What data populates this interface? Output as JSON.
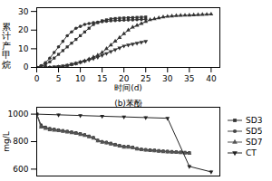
{
  "chart_data": [
    {
      "type": "line",
      "xlabel": "时间(d)",
      "ylabel": "累\n计\n产\n甲\n烷",
      "xlim": [
        0,
        42
      ],
      "xticks": [
        0,
        5,
        10,
        15,
        20,
        25,
        30,
        35,
        40
      ],
      "ylim": [
        0,
        32
      ],
      "yticks": [
        0,
        10,
        20,
        30
      ],
      "series": [
        {
          "name": "SD3",
          "color": "#333333",
          "marker": "square",
          "line_style": "solid",
          "x": [
            0,
            1,
            2,
            3,
            4,
            5,
            6,
            7,
            8,
            9,
            10,
            11,
            12,
            13,
            14,
            15,
            16,
            17,
            18,
            19,
            20,
            21,
            22,
            23,
            24,
            25
          ],
          "values": [
            0,
            0.5,
            1.5,
            3,
            5,
            7,
            9,
            11,
            13,
            15,
            17,
            19,
            21,
            23,
            24,
            25,
            25.5,
            26,
            26.2,
            26.4,
            26.5,
            26.6,
            26.7,
            26.8,
            26.9,
            27
          ]
        },
        {
          "name": "SD5",
          "color": "#333333",
          "marker": "circle",
          "line_style": "solid",
          "x": [
            0,
            1,
            2,
            3,
            4,
            5,
            6,
            7,
            8,
            9,
            10,
            11,
            12,
            13,
            14,
            15,
            16,
            17,
            18,
            19,
            20,
            21,
            22,
            23,
            24,
            25
          ],
          "values": [
            0,
            1,
            2.5,
            5,
            8,
            11,
            14,
            17,
            19,
            21,
            22,
            23,
            23.5,
            24,
            24.2,
            24.5,
            24.7,
            25,
            25.1,
            25.2,
            25.3,
            25.4,
            25.5,
            25.6,
            25.7,
            25.8
          ]
        },
        {
          "name": "SD7",
          "color": "#333333",
          "marker": "triangle-up",
          "line_style": "solid",
          "x": [
            0,
            1,
            2,
            3,
            4,
            5,
            6,
            7,
            8,
            9,
            10,
            11,
            12,
            13,
            14,
            15,
            16,
            17,
            18,
            19,
            20,
            21,
            22,
            23,
            24,
            25,
            26,
            27,
            28,
            29,
            30,
            31,
            32,
            33,
            34,
            35,
            36,
            37,
            38,
            39,
            40
          ],
          "values": [
            0,
            0,
            0,
            0,
            0,
            0.2,
            0.5,
            1,
            1.5,
            2,
            2.8,
            3.5,
            4.5,
            5.5,
            6.5,
            8,
            10,
            12,
            14,
            16,
            18,
            20,
            21.5,
            22.5,
            23.5,
            24.5,
            25.5,
            26,
            26.5,
            27,
            27.3,
            27.5,
            27.7,
            27.8,
            27.9,
            28,
            28.1,
            28.2,
            28.3,
            28.4,
            28.5
          ]
        },
        {
          "name": "CT",
          "color": "#333333",
          "marker": "triangle-down",
          "line_style": "solid",
          "x": [
            0,
            1,
            2,
            3,
            4,
            5,
            6,
            7,
            8,
            9,
            10,
            11,
            12,
            13,
            14,
            15,
            16,
            17,
            18,
            19,
            20,
            21,
            22,
            23,
            24,
            25
          ],
          "values": [
            0,
            0,
            0,
            0.1,
            0.3,
            0.5,
            0.8,
            1.2,
            1.7,
            2.2,
            2.8,
            3.4,
            4,
            4.7,
            5.5,
            6.5,
            7.5,
            8.5,
            9.5,
            10.5,
            11.5,
            12,
            12.5,
            13,
            13.5,
            14
          ]
        }
      ]
    },
    {
      "type": "line",
      "title": "(b)苯酚",
      "ylabel": "mg/L",
      "xlim": [
        0,
        42
      ],
      "xticks": [],
      "ylim": [
        550,
        1050
      ],
      "yticks": [
        600,
        800,
        1000
      ],
      "tick_labels": "y",
      "legend": "right",
      "series": [
        {
          "name": "SD3",
          "color": "#333333",
          "marker": "square",
          "line_style": "solid",
          "x": [
            0,
            1,
            2,
            3,
            4,
            5,
            6,
            7,
            8,
            9,
            10,
            11,
            12,
            13,
            14,
            15,
            16,
            17,
            18,
            19,
            20,
            21,
            22,
            23,
            24,
            25,
            26,
            27,
            28,
            29,
            30,
            31,
            32,
            33,
            34,
            35
          ],
          "values": [
            1000,
            920,
            905,
            895,
            890,
            885,
            880,
            875,
            870,
            865,
            858,
            850,
            840,
            830,
            810,
            800,
            795,
            788,
            780,
            772,
            765,
            765,
            760,
            750,
            745,
            742,
            740,
            738,
            735,
            732,
            730,
            728,
            726,
            724,
            722,
            720
          ],
          "yerr": [
            0,
            10,
            8,
            8,
            8,
            8,
            7,
            7,
            7,
            7,
            7,
            7,
            6,
            6,
            10,
            8,
            7,
            7,
            7,
            7,
            7,
            0,
            6,
            6,
            6,
            5,
            5,
            5,
            5,
            5,
            5,
            5,
            5,
            5,
            5,
            5
          ]
        },
        {
          "name": "SD5",
          "color": "#444444",
          "marker": "circle",
          "line_style": "solid",
          "x": [
            0,
            1,
            2,
            3,
            4,
            5,
            6,
            7,
            8,
            9,
            10,
            11,
            12,
            13,
            14,
            15,
            16,
            17,
            18,
            19,
            20,
            21,
            22,
            23,
            24,
            25,
            26,
            27,
            28,
            29,
            30,
            31,
            32,
            33,
            34,
            35
          ],
          "values": [
            1000,
            910,
            900,
            892,
            887,
            882,
            877,
            872,
            867,
            862,
            855,
            848,
            838,
            828,
            807,
            798,
            792,
            785,
            777,
            770,
            762,
            762,
            758,
            748,
            743,
            740,
            737,
            735,
            732,
            729,
            727,
            725,
            723,
            721,
            719,
            717
          ],
          "yerr": [
            0,
            10,
            8,
            8,
            8,
            8,
            7,
            7,
            7,
            7,
            7,
            7,
            6,
            6,
            10,
            8,
            7,
            7,
            7,
            7,
            7,
            0,
            6,
            6,
            6,
            5,
            5,
            5,
            5,
            5,
            5,
            5,
            5,
            5,
            5,
            5
          ]
        },
        {
          "name": "SD7",
          "color": "#555555",
          "marker": "triangle-up",
          "line_style": "solid",
          "x": [
            0,
            1,
            2,
            3,
            4,
            5,
            6,
            7,
            8,
            9,
            10,
            11,
            12,
            13,
            14,
            15,
            16,
            17,
            18,
            19,
            20,
            21,
            22,
            23,
            24,
            25,
            26,
            27,
            28,
            29,
            30,
            31,
            32,
            33,
            34,
            35
          ],
          "values": [
            1000,
            905,
            895,
            885,
            882,
            878,
            873,
            868,
            863,
            858,
            851,
            844,
            834,
            824,
            804,
            795,
            789,
            782,
            774,
            767,
            759,
            759,
            755,
            745,
            740,
            737,
            734,
            732,
            729,
            726,
            724,
            722,
            720,
            718,
            716,
            714
          ],
          "yerr": [
            0,
            10,
            8,
            8,
            8,
            8,
            7,
            7,
            7,
            7,
            7,
            7,
            6,
            6,
            10,
            8,
            7,
            7,
            7,
            7,
            7,
            0,
            6,
            6,
            6,
            5,
            5,
            5,
            5,
            5,
            5,
            5,
            5,
            5,
            5,
            5
          ]
        },
        {
          "name": "CT",
          "color": "#222222",
          "marker": "triangle-down",
          "line_style": "solid",
          "x": [
            0,
            5,
            10,
            15,
            20,
            25,
            30,
            35,
            40
          ],
          "values": [
            1000,
            995,
            990,
            985,
            980,
            975,
            970,
            620,
            580
          ],
          "yerr": [
            0,
            5,
            5,
            5,
            5,
            5,
            5,
            10,
            10
          ]
        }
      ]
    }
  ]
}
